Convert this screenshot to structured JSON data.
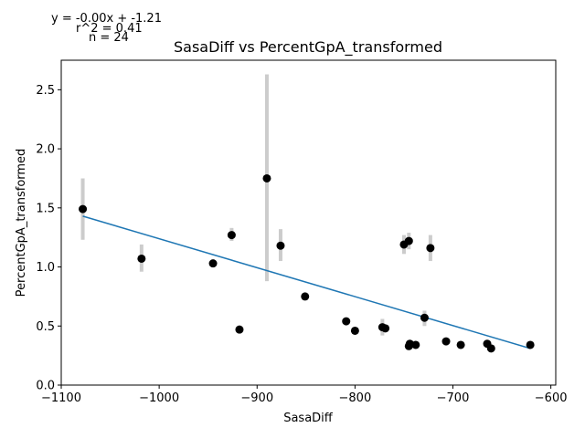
{
  "chart_data": {
    "type": "scatter",
    "title": "SasaDiff vs PercentGpA_transformed",
    "xlabel": "SasaDiff",
    "ylabel": "PercentGpA_transformed",
    "xlim": [
      -1100,
      -595
    ],
    "ylim": [
      0.0,
      2.75
    ],
    "xticks": [
      -1100,
      -1000,
      -900,
      -800,
      -700,
      -600
    ],
    "xtick_labels": [
      "−1100",
      "−1000",
      "−900",
      "−800",
      "−700",
      "−600"
    ],
    "yticks": [
      0.0,
      0.5,
      1.0,
      1.5,
      2.0,
      2.5
    ],
    "ytick_labels": [
      "0.0",
      "0.5",
      "1.0",
      "1.5",
      "2.0",
      "2.5"
    ],
    "grid": false,
    "annotations": {
      "equation": "y = -0.00x + -1.21",
      "r_squared": "r^2 = 0.41",
      "n": "n = 24"
    },
    "points": [
      {
        "x": -1078,
        "y": 1.49,
        "err_low": 1.23,
        "err_high": 1.75
      },
      {
        "x": -1018,
        "y": 1.07,
        "err_low": 0.96,
        "err_high": 1.19
      },
      {
        "x": -945,
        "y": 1.03,
        "err_low": 1.02,
        "err_high": 1.04
      },
      {
        "x": -926,
        "y": 1.27,
        "err_low": 1.22,
        "err_high": 1.33
      },
      {
        "x": -918,
        "y": 0.47,
        "err_low": 0.46,
        "err_high": 0.48
      },
      {
        "x": -890,
        "y": 1.75,
        "err_low": 0.88,
        "err_high": 2.63
      },
      {
        "x": -876,
        "y": 1.18,
        "err_low": 1.05,
        "err_high": 1.32
      },
      {
        "x": -851,
        "y": 0.75,
        "err_low": 0.74,
        "err_high": 0.76
      },
      {
        "x": -809,
        "y": 0.54,
        "err_low": 0.52,
        "err_high": 0.56
      },
      {
        "x": -800,
        "y": 0.46,
        "err_low": 0.44,
        "err_high": 0.48
      },
      {
        "x": -772,
        "y": 0.49,
        "err_low": 0.42,
        "err_high": 0.56
      },
      {
        "x": -769,
        "y": 0.48,
        "err_low": 0.46,
        "err_high": 0.5
      },
      {
        "x": -750,
        "y": 1.19,
        "err_low": 1.11,
        "err_high": 1.27
      },
      {
        "x": -745,
        "y": 0.33,
        "err_low": 0.31,
        "err_high": 0.35
      },
      {
        "x": -745,
        "y": 1.22,
        "err_low": 1.15,
        "err_high": 1.29
      },
      {
        "x": -744,
        "y": 0.35,
        "err_low": 0.33,
        "err_high": 0.37
      },
      {
        "x": -738,
        "y": 0.34,
        "err_low": 0.33,
        "err_high": 0.35
      },
      {
        "x": -729,
        "y": 0.57,
        "err_low": 0.5,
        "err_high": 0.63
      },
      {
        "x": -723,
        "y": 1.16,
        "err_low": 1.05,
        "err_high": 1.27
      },
      {
        "x": -707,
        "y": 0.37,
        "err_low": 0.36,
        "err_high": 0.38
      },
      {
        "x": -692,
        "y": 0.34,
        "err_low": 0.33,
        "err_high": 0.35
      },
      {
        "x": -665,
        "y": 0.35,
        "err_low": 0.34,
        "err_high": 0.36
      },
      {
        "x": -661,
        "y": 0.31,
        "err_low": 0.3,
        "err_high": 0.32
      },
      {
        "x": -621,
        "y": 0.34,
        "err_low": 0.33,
        "err_high": 0.35
      }
    ],
    "fit_line": {
      "x": [
        -1078,
        -621
      ],
      "y": [
        1.43,
        0.31
      ]
    },
    "colors": {
      "points": "#000000",
      "error_bars": "#cccccc",
      "fit_line": "#1f77b4",
      "axes": "#000000"
    }
  }
}
